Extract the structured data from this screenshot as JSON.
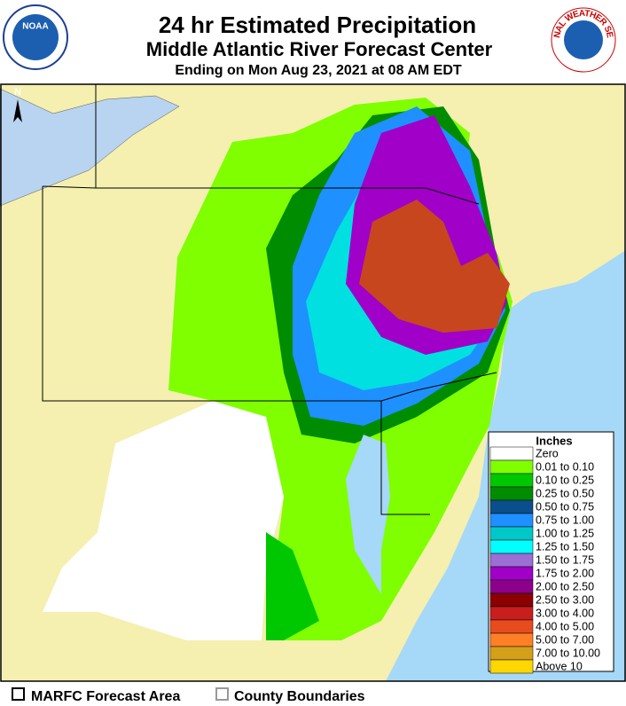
{
  "header": {
    "title": "24 hr Estimated Precipitation",
    "subtitle": "Middle Atlantic River Forecast Center",
    "ending": "Ending on Mon Aug 23, 2021 at 08 AM EDT"
  },
  "logos": {
    "left": "NOAA",
    "right": "NATIONAL WEATHER SERVICE"
  },
  "map": {
    "north": "N"
  },
  "legend": {
    "title": "Inches",
    "items": [
      {
        "label": "Zero",
        "color": "#ffffff"
      },
      {
        "label": "0.01 to 0.10",
        "color": "#7fff00"
      },
      {
        "label": "0.10 to 0.25",
        "color": "#00c800"
      },
      {
        "label": "0.25 to 0.50",
        "color": "#008c00"
      },
      {
        "label": "0.50 to 0.75",
        "color": "#0a4f8c"
      },
      {
        "label": "0.75 to 1.00",
        "color": "#1e90ff"
      },
      {
        "label": "1.00 to 1.25",
        "color": "#00c8c8"
      },
      {
        "label": "1.25 to 1.50",
        "color": "#00ffff"
      },
      {
        "label": "1.50 to 1.75",
        "color": "#9b6fd4"
      },
      {
        "label": "1.75 to 2.00",
        "color": "#a000c8"
      },
      {
        "label": "2.00 to 2.50",
        "color": "#8c008c"
      },
      {
        "label": "2.50 to 3.00",
        "color": "#8b0000"
      },
      {
        "label": "3.00 to 4.00",
        "color": "#c81e1e"
      },
      {
        "label": "4.00 to 5.00",
        "color": "#e84c1e"
      },
      {
        "label": "5.00 to 7.00",
        "color": "#ff7f27"
      },
      {
        "label": "7.00 to 10.00",
        "color": "#d4a017"
      },
      {
        "label": "Above 10",
        "color": "#ffd700"
      }
    ]
  },
  "footer": [
    "MARFC Forecast Area",
    "County Boundaries"
  ]
}
